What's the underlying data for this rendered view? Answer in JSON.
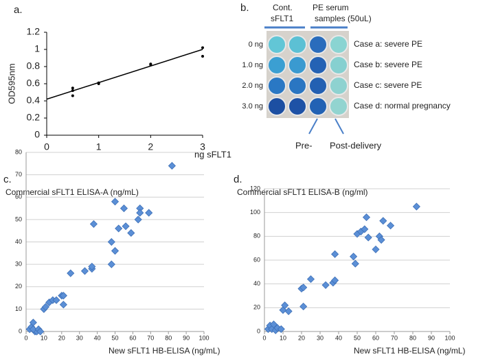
{
  "chart_data": [
    {
      "type": "scatter",
      "panel_label": "a.",
      "x_label": "ng sFLT1",
      "y_label": "OD595nm",
      "xlim": [
        0,
        3
      ],
      "ylim": [
        0,
        1.2
      ],
      "xticks": [
        0,
        1,
        2,
        3
      ],
      "yticks": [
        0,
        0.2,
        0.4,
        0.6,
        0.8,
        1,
        1.2
      ],
      "grid": false,
      "series": [
        {
          "mode": "markers",
          "color": "#000000",
          "x": [
            0.5,
            0.5,
            0.5,
            1,
            1,
            2,
            2,
            3,
            3
          ],
          "values": [
            0.55,
            0.52,
            0.46,
            0.6,
            0.61,
            0.82,
            0.83,
            1.02,
            0.92
          ]
        },
        {
          "mode": "line",
          "color": "#000000",
          "x": [
            0,
            3
          ],
          "values": [
            0.42,
            1.0
          ]
        }
      ]
    },
    {
      "type": "scatter",
      "panel_label": "c.",
      "title": "Commercial sFLT1 ELISA-A (ng/mL)",
      "x_label": "New sFLT1 HB-ELISA (ng/mL)",
      "xlim": [
        0,
        100
      ],
      "ylim": [
        0,
        80
      ],
      "xticks": [
        0,
        10,
        20,
        30,
        40,
        50,
        60,
        70,
        80,
        90,
        100
      ],
      "yticks": [
        0,
        10,
        20,
        30,
        40,
        50,
        60,
        70,
        80
      ],
      "grid": true,
      "series": [
        {
          "mode": "diamonds",
          "color": "#5b8fd6",
          "x": [
            2,
            3,
            4,
            5,
            6,
            4,
            7,
            8,
            10,
            11,
            13,
            15,
            17,
            20,
            21,
            21,
            25,
            33,
            37,
            37,
            38,
            48,
            48,
            50,
            50,
            52,
            55,
            56,
            59,
            63,
            64,
            64,
            69,
            82
          ],
          "values": [
            1,
            2,
            4,
            0,
            0,
            1,
            1,
            0,
            10,
            11,
            13,
            14,
            14,
            16,
            16,
            12,
            26,
            27,
            28,
            29,
            48,
            30,
            40,
            36,
            58,
            46,
            55,
            47,
            44,
            50,
            55,
            53,
            53,
            74
          ]
        }
      ]
    },
    {
      "type": "scatter",
      "panel_label": "d.",
      "title": "Commercial sFLT1 ELISA-B (ng/ml)",
      "x_label": "New sFLT1 HB-ELISA (ng/mL)",
      "xlim": [
        0,
        100
      ],
      "ylim": [
        0,
        120
      ],
      "xticks": [
        0,
        10,
        20,
        30,
        40,
        50,
        60,
        70,
        80,
        90,
        100
      ],
      "yticks": [
        0,
        20,
        40,
        60,
        80,
        100,
        120
      ],
      "grid": true,
      "series": [
        {
          "mode": "diamonds",
          "color": "#5b8fd6",
          "x": [
            2,
            3,
            4,
            5,
            6,
            7,
            9,
            10,
            11,
            13,
            20,
            21,
            21,
            25,
            33,
            37,
            38,
            38,
            48,
            49,
            50,
            52,
            54,
            55,
            56,
            60,
            62,
            64,
            63,
            68,
            82
          ],
          "values": [
            2,
            5,
            2,
            6,
            1,
            3,
            2,
            18,
            22,
            17,
            36,
            37,
            21,
            44,
            39,
            41,
            43,
            65,
            63,
            57,
            82,
            84,
            86,
            96,
            79,
            69,
            80,
            93,
            77,
            89,
            105
          ]
        }
      ]
    }
  ],
  "panel_b": {
    "label": "b.",
    "control": [
      "Cont.",
      "sFLT1"
    ],
    "samples": [
      "PE serum",
      "samples (50uL)"
    ],
    "doses": [
      "0 ng",
      "1.0 ng",
      "2.0 ng",
      "3.0 ng"
    ],
    "cases": [
      "Case a: severe PE",
      "Case b: severe PE",
      "Case c: severe PE",
      "Case d: normal pregnancy"
    ],
    "pre": "Pre-",
    "post": "Post-delivery"
  }
}
